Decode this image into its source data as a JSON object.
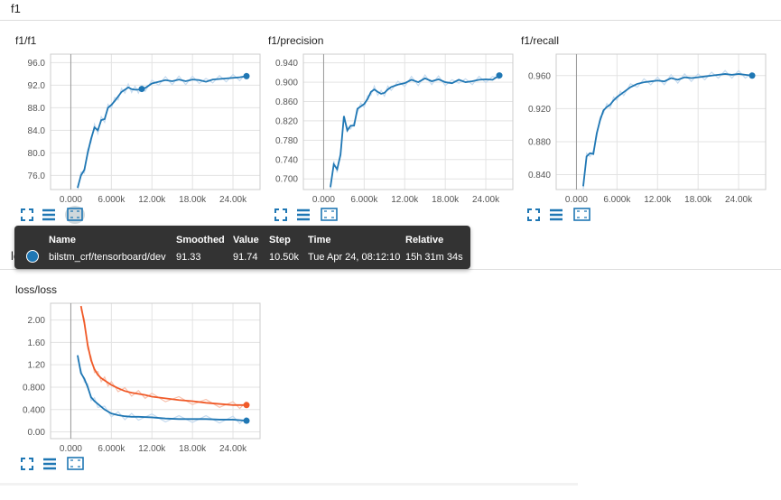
{
  "sections": {
    "f1": "f1",
    "loss": "los"
  },
  "colors": {
    "dev": "#1f77b4",
    "train": "#f05a28",
    "raw": "#c6dbef",
    "raw_train": "#f7c1ad"
  },
  "icons": [
    "expand-icon",
    "list-icon",
    "fit-domain-icon"
  ],
  "tooltip": {
    "headers": {
      "name": "Name",
      "smoothed": "Smoothed",
      "value": "Value",
      "step": "Step",
      "time": "Time",
      "relative": "Relative"
    },
    "row": {
      "name": "bilstm_crf/tensorboard/dev",
      "smoothed": "91.33",
      "value": "91.74",
      "step": "10.50k",
      "time": "Tue Apr 24, 08:12:10",
      "relative": "15h 31m 34s"
    }
  },
  "chart_data": [
    {
      "type": "line",
      "title": "f1/f1",
      "xlim": [
        -3000,
        28000
      ],
      "ylim": [
        73.5,
        97.5
      ],
      "xticks": [
        0,
        6000,
        12000,
        18000,
        24000
      ],
      "xtick_labels": [
        "0.000",
        "6.000k",
        "12.00k",
        "18.00k",
        "24.00k"
      ],
      "yticks": [
        76,
        80,
        84,
        88,
        92,
        96
      ],
      "ytick_labels": [
        "76.0",
        "80.0",
        "84.0",
        "88.0",
        "92.0",
        "96.0"
      ],
      "series": [
        {
          "color": "#1f77b4",
          "x": [
            1000,
            1500,
            2000,
            2500,
            3000,
            3500,
            4000,
            4500,
            5000,
            5500,
            6000,
            6500,
            7000,
            7500,
            8000,
            8500,
            9000,
            9500,
            10000,
            10500,
            11000,
            12000,
            13000,
            14000,
            15000,
            16000,
            17000,
            18000,
            19000,
            20000,
            21000,
            22000,
            23000,
            24000,
            25000,
            26000
          ],
          "y": [
            73.8,
            76.0,
            77.0,
            80.0,
            82.5,
            84.5,
            84.0,
            85.8,
            86.0,
            88.0,
            88.5,
            89.2,
            90.0,
            90.8,
            91.2,
            91.6,
            91.3,
            91.2,
            91.2,
            91.33,
            91.5,
            92.3,
            92.6,
            92.9,
            92.7,
            93.0,
            92.7,
            93.0,
            92.9,
            92.6,
            93.0,
            93.1,
            93.2,
            93.3,
            93.4,
            93.6
          ],
          "end_marker": true,
          "marker_at": 10500
        }
      ]
    },
    {
      "type": "line",
      "title": "f1/precision",
      "xlim": [
        -3000,
        28000
      ],
      "ylim": [
        0.678,
        0.958
      ],
      "xticks": [
        0,
        6000,
        12000,
        18000,
        24000
      ],
      "xtick_labels": [
        "0.000",
        "6.000k",
        "12.00k",
        "18.00k",
        "24.00k"
      ],
      "yticks": [
        0.7,
        0.74,
        0.78,
        0.82,
        0.86,
        0.9,
        0.94
      ],
      "ytick_labels": [
        "0.700",
        "0.740",
        "0.780",
        "0.820",
        "0.860",
        "0.900",
        "0.940"
      ],
      "series": [
        {
          "color": "#1f77b4",
          "x": [
            1000,
            1500,
            2000,
            2500,
            3000,
            3500,
            4000,
            4500,
            5000,
            5500,
            6000,
            6500,
            7000,
            7500,
            8000,
            8500,
            9000,
            9500,
            10000,
            11000,
            12000,
            13000,
            14000,
            15000,
            16000,
            17000,
            18000,
            19000,
            20000,
            21000,
            22000,
            23000,
            24000,
            25000,
            26000
          ],
          "y": [
            0.683,
            0.73,
            0.72,
            0.75,
            0.83,
            0.8,
            0.81,
            0.81,
            0.845,
            0.85,
            0.855,
            0.865,
            0.88,
            0.885,
            0.88,
            0.876,
            0.878,
            0.885,
            0.89,
            0.895,
            0.898,
            0.905,
            0.9,
            0.908,
            0.902,
            0.906,
            0.9,
            0.898,
            0.905,
            0.9,
            0.902,
            0.905,
            0.906,
            0.905,
            0.914
          ],
          "end_marker": true
        }
      ]
    },
    {
      "type": "line",
      "title": "f1/recall",
      "xlim": [
        -3000,
        28000
      ],
      "ylim": [
        0.822,
        0.986
      ],
      "xticks": [
        0,
        6000,
        12000,
        18000,
        24000
      ],
      "xtick_labels": [
        "0.000",
        "6.000k",
        "12.00k",
        "18.00k",
        "24.00k"
      ],
      "yticks": [
        0.84,
        0.88,
        0.92,
        0.96
      ],
      "ytick_labels": [
        "0.840",
        "0.880",
        "0.920",
        "0.960"
      ],
      "series": [
        {
          "color": "#1f77b4",
          "x": [
            1000,
            1500,
            2000,
            2500,
            3000,
            3500,
            4000,
            4500,
            5000,
            5500,
            6000,
            6500,
            7000,
            8000,
            9000,
            10000,
            11000,
            12000,
            13000,
            14000,
            15000,
            16000,
            17000,
            18000,
            19000,
            20000,
            21000,
            22000,
            23000,
            24000,
            25000,
            26000
          ],
          "y": [
            0.826,
            0.862,
            0.866,
            0.865,
            0.89,
            0.906,
            0.918,
            0.922,
            0.925,
            0.93,
            0.934,
            0.937,
            0.94,
            0.946,
            0.95,
            0.952,
            0.953,
            0.954,
            0.953,
            0.957,
            0.955,
            0.958,
            0.957,
            0.958,
            0.959,
            0.96,
            0.961,
            0.962,
            0.961,
            0.962,
            0.961,
            0.96
          ],
          "end_marker": true
        }
      ]
    },
    {
      "type": "line",
      "title": "loss/loss",
      "xlim": [
        -3000,
        28000
      ],
      "ylim": [
        -0.12,
        2.3
      ],
      "xticks": [
        0,
        6000,
        12000,
        18000,
        24000
      ],
      "xtick_labels": [
        "0.000",
        "6.000k",
        "12.00k",
        "18.00k",
        "24.00k"
      ],
      "yticks": [
        0.0,
        0.4,
        0.8,
        1.2,
        1.6,
        2.0
      ],
      "ytick_labels": [
        "0.00",
        "0.400",
        "0.800",
        "1.20",
        "1.60",
        "2.00"
      ],
      "series": [
        {
          "color": "#f05a28",
          "x": [
            1500,
            2000,
            2500,
            3000,
            3500,
            4000,
            4500,
            5000,
            5500,
            6000,
            7000,
            8000,
            9000,
            10000,
            11000,
            12000,
            14000,
            16000,
            18000,
            20000,
            22000,
            24000,
            25000,
            26000
          ],
          "y": [
            2.25,
            1.95,
            1.55,
            1.28,
            1.12,
            1.02,
            0.96,
            0.92,
            0.88,
            0.84,
            0.78,
            0.73,
            0.7,
            0.68,
            0.66,
            0.63,
            0.6,
            0.57,
            0.55,
            0.52,
            0.5,
            0.48,
            0.48,
            0.48
          ],
          "end_marker": true
        },
        {
          "color": "#1f77b4",
          "x": [
            1000,
            1500,
            2000,
            2500,
            3000,
            3500,
            4000,
            5000,
            6000,
            7000,
            8000,
            9000,
            10000,
            12000,
            14000,
            16000,
            18000,
            20000,
            22000,
            24000,
            25000,
            26000
          ],
          "y": [
            1.37,
            1.05,
            0.95,
            0.8,
            0.62,
            0.55,
            0.5,
            0.4,
            0.33,
            0.3,
            0.28,
            0.27,
            0.27,
            0.26,
            0.24,
            0.23,
            0.23,
            0.23,
            0.22,
            0.22,
            0.21,
            0.2
          ],
          "end_marker": true
        }
      ]
    }
  ]
}
